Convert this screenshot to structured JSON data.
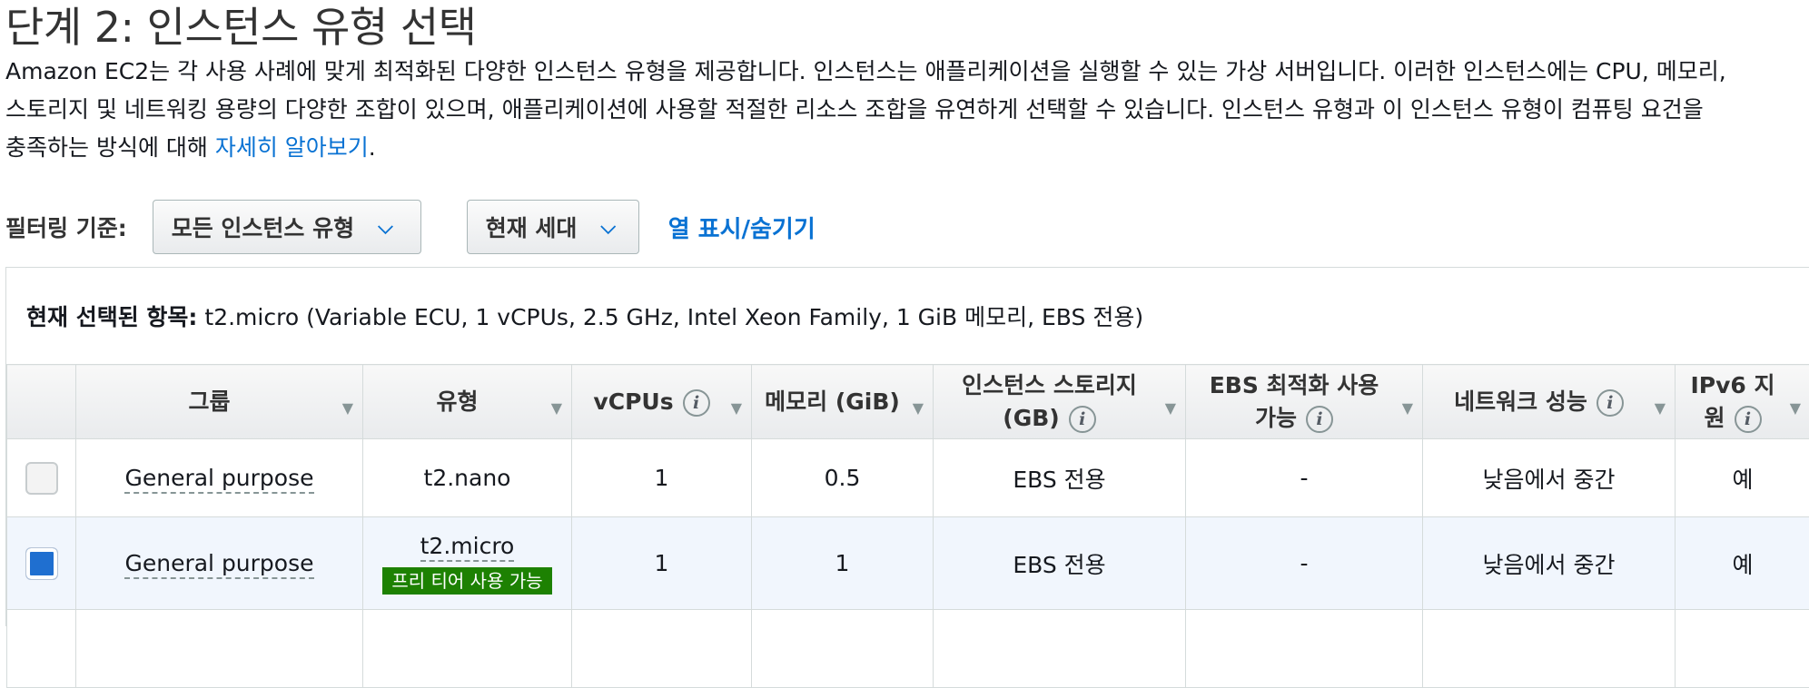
{
  "page": {
    "title": "단계 2: 인스턴스 유형 선택",
    "description_lines": [
      "Amazon EC2는 각 사용 사례에 맞게 최적화된 다양한 인스턴스 유형을 제공합니다. 인스턴스는 애플리케이션을 실행할 수 있는 가상 서버입니다. 이러한 인스턴스에는 CPU, 메모리,",
      "스토리지 및 네트워킹 용량의 다양한 조합이 있으며, 애플리케이션에 사용할 적절한 리소스 조합을 유연하게 선택할 수 있습니다. 인스턴스 유형과 이 인스턴스 유형이 컴퓨팅 요건을",
      "충족하는 방식에 대해 "
    ],
    "learn_more": "자세히 알아보기",
    "learn_more_suffix": "."
  },
  "filter": {
    "label": "필터링 기준:",
    "instance_family": "모든 인스턴스 유형",
    "generation": "현재 세대",
    "toggle_columns": "열 표시/숨기기"
  },
  "selection": {
    "label": "현재 선택된 항목:",
    "value": "t2.micro (Variable ECU, 1 vCPUs, 2.5 GHz, Intel Xeon Family, 1 GiB 메모리, EBS 전용)"
  },
  "table": {
    "headers": {
      "group": "그룹",
      "type": "유형",
      "vcpus": "vCPUs",
      "memory": "메모리 (GiB)",
      "storage_line1": "인스턴스 스토리지",
      "storage_line2": "(GB)",
      "ebs_line1": "EBS 최적화 사용",
      "ebs_line2": "가능",
      "network": "네트워크 성능",
      "ipv6_line1": "IPv6 지",
      "ipv6_line2": "원"
    },
    "rows": [
      {
        "selected": false,
        "group": "General purpose",
        "type": "t2.nano",
        "badge": "",
        "vcpus": "1",
        "memory": "0.5",
        "storage": "EBS 전용",
        "ebs_optimized": "-",
        "network": "낮음에서 중간",
        "ipv6": "예"
      },
      {
        "selected": true,
        "group": "General purpose",
        "type": "t2.micro",
        "badge": "프리 티어 사용 가능",
        "vcpus": "1",
        "memory": "1",
        "storage": "EBS 전용",
        "ebs_optimized": "-",
        "network": "낮음에서 중간",
        "ipv6": "예"
      }
    ]
  },
  "icons": {
    "info": "info-icon",
    "sort": "sort-caret-icon",
    "dropdown": "chevron-down-icon"
  },
  "colors": {
    "link": "#0972d3",
    "free_tier_badge": "#1d8102",
    "selected_row": "#f1f6fd",
    "checkbox_checked": "#1f6fd0"
  }
}
